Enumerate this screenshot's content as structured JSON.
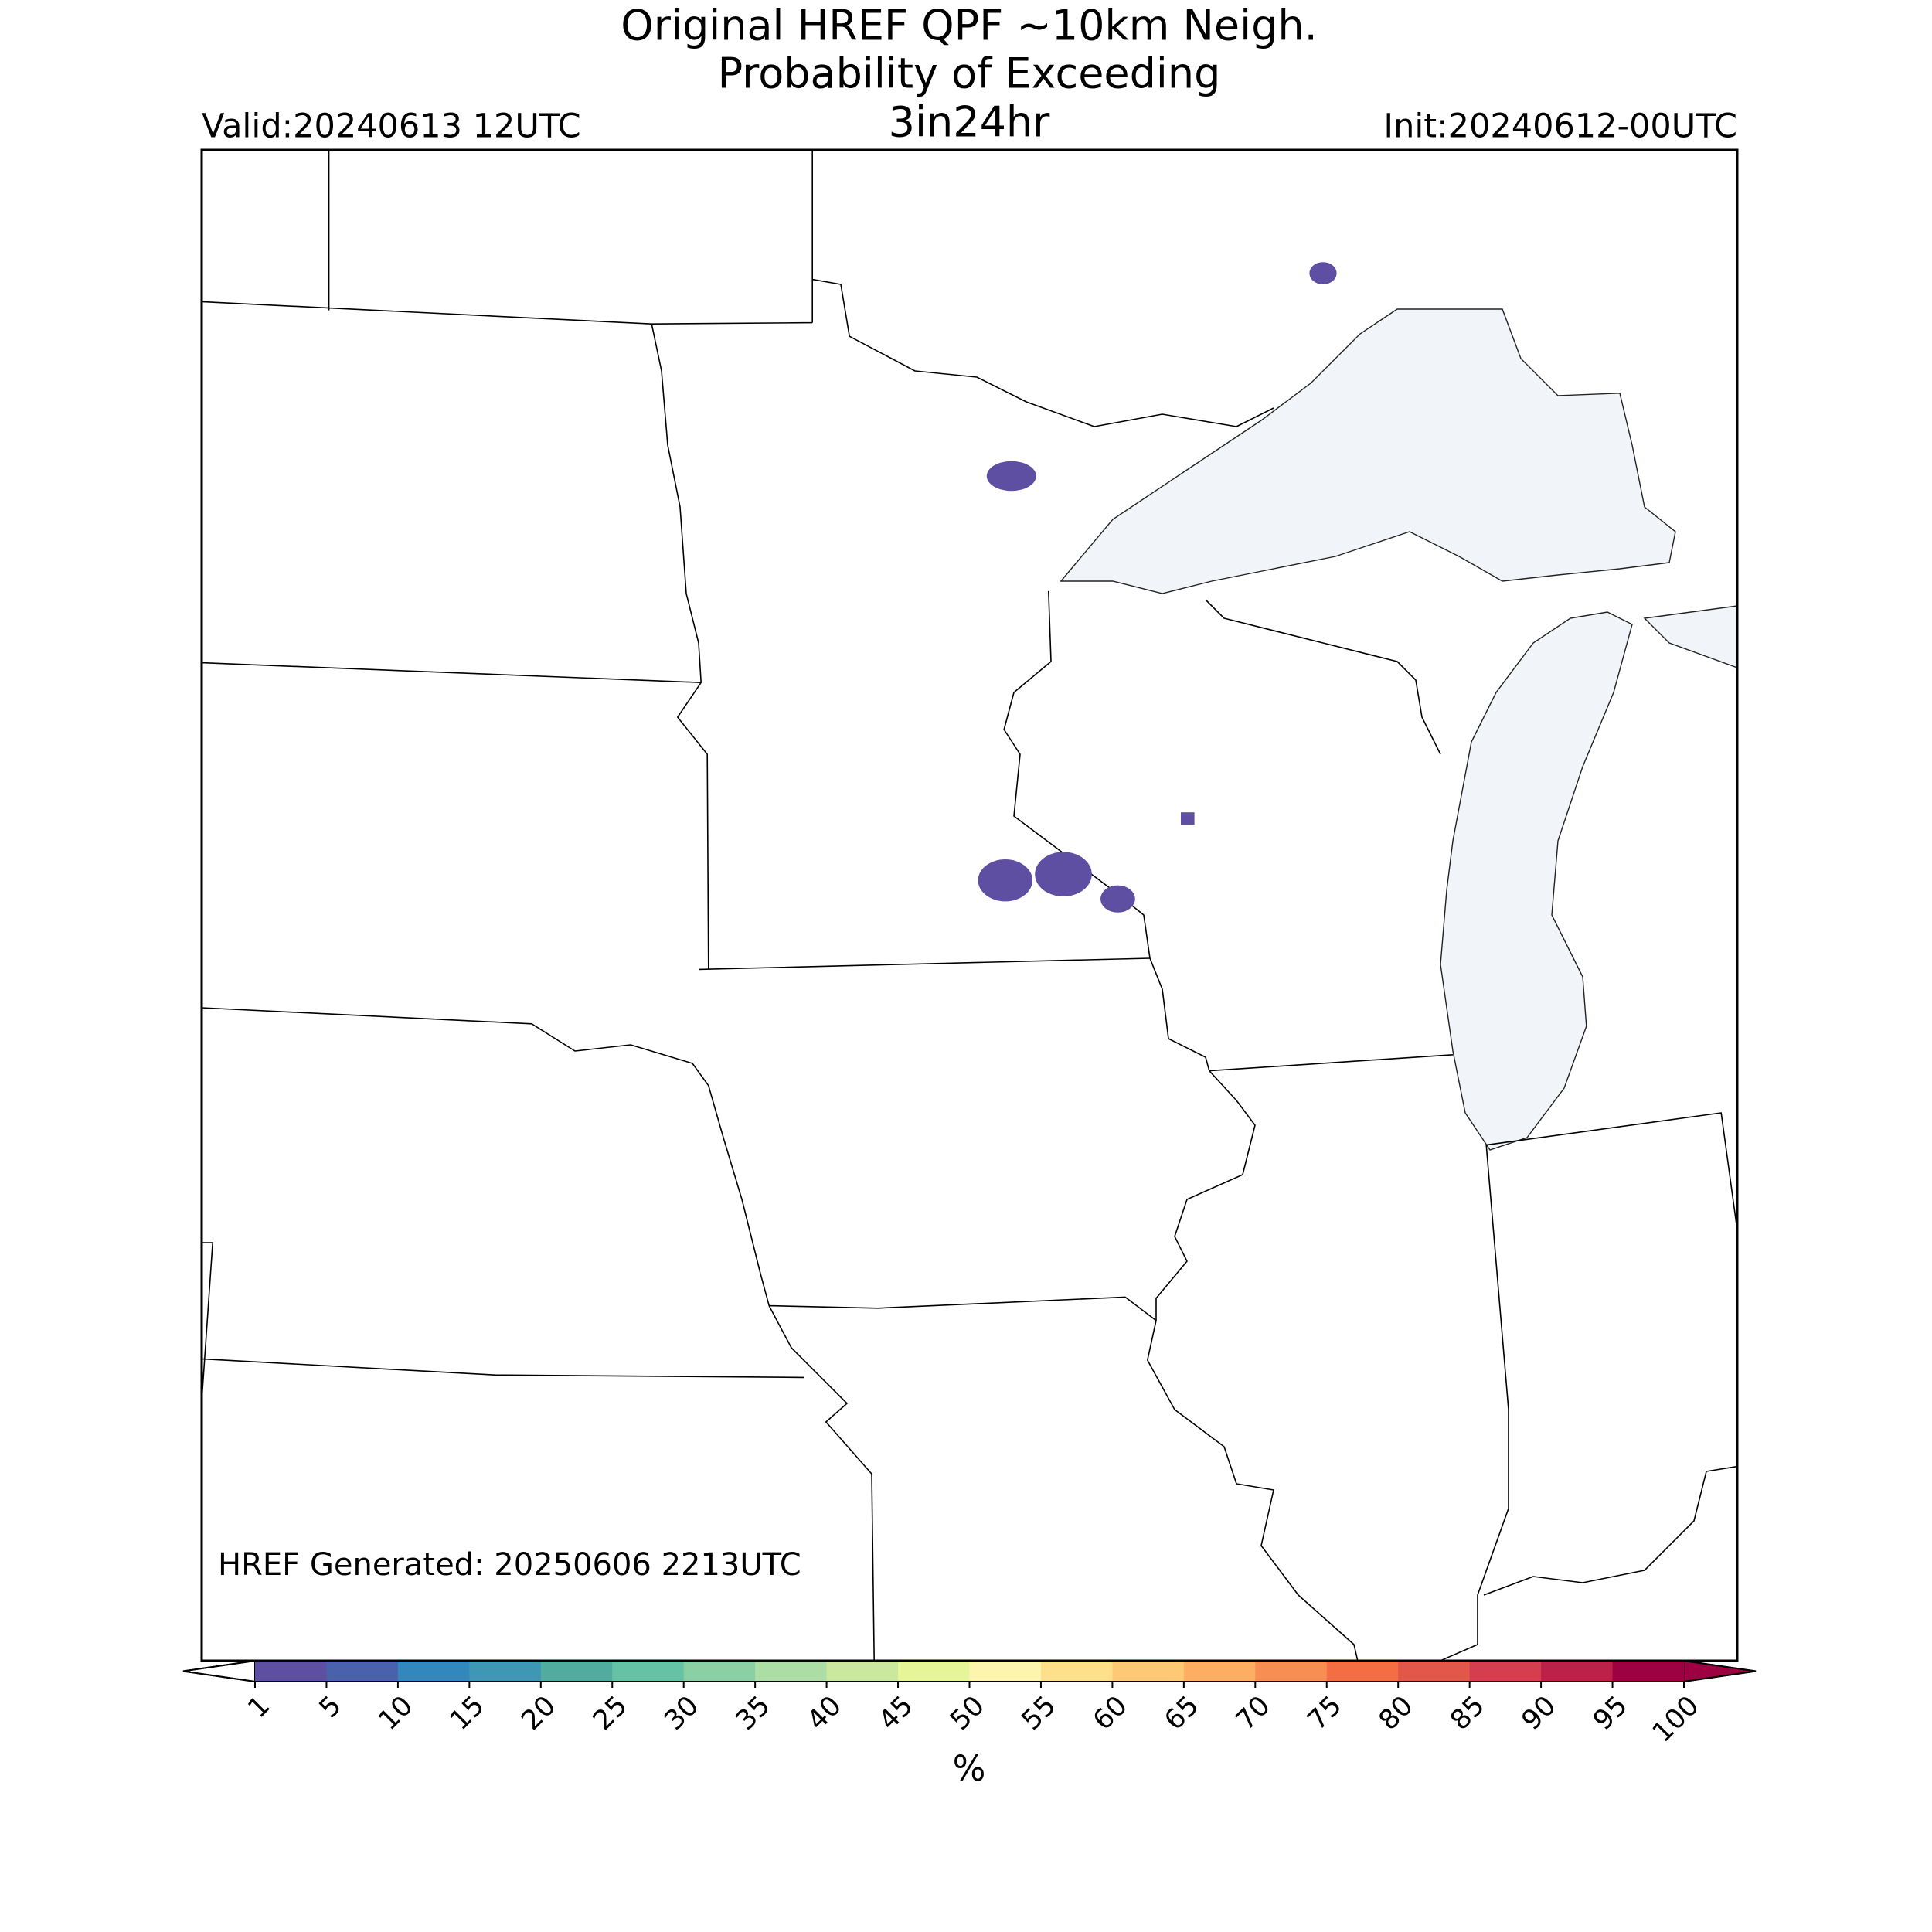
{
  "header": {
    "title_lines": [
      "Original HREF QPF ~10km Neigh.",
      "Probability of Exceeding",
      "3in24hr"
    ],
    "valid": "Valid:20240613 12UTC",
    "init": "Init:20240612-00UTC"
  },
  "map": {
    "generated": "HREF Generated: 20250606 2213UTC"
  },
  "colorbar": {
    "ticks": [
      1,
      5,
      10,
      15,
      20,
      25,
      30,
      35,
      40,
      45,
      50,
      55,
      60,
      65,
      70,
      75,
      80,
      85,
      90,
      95,
      100
    ],
    "colors": [
      "#5e4fa2",
      "#4a62ab",
      "#3288bd",
      "#3f97b6",
      "#51ac9f",
      "#66c2a5",
      "#8bd0a4",
      "#abdda4",
      "#cbe99e",
      "#e6f598",
      "#fdf5ad",
      "#fee08b",
      "#fdc974",
      "#fdae61",
      "#f98e52",
      "#f46d43",
      "#e2574a",
      "#d53e4f",
      "#bb2149",
      "#9e0142"
    ],
    "under_color": "#ffffff",
    "over_color": "#9e0142",
    "label": "%"
  }
}
